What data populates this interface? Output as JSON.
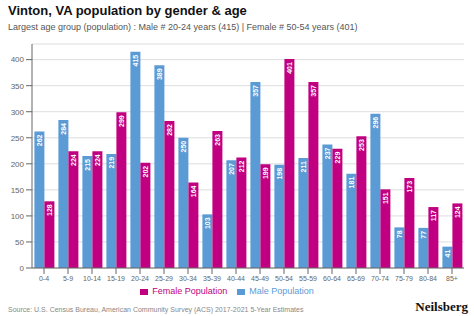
{
  "chart_data": {
    "type": "bar",
    "title": "Vinton, VA population by gender & age",
    "subtitle": "Largest age group (population) : Male # 20-24 years (415) | Female # 50-54 years (401)",
    "annotations": [
      "Source: U.S. Census Bureau, American Community Survey (ACS) 2017-2021 5-Year Estimates",
      "Neilsberg"
    ],
    "categories": [
      "0-4",
      "5-9",
      "10-14",
      "15-19",
      "20-24",
      "25-29",
      "30-34",
      "35-39",
      "40-44",
      "45-49",
      "50-54",
      "55-59",
      "60-64",
      "65-69",
      "70-74",
      "75-79",
      "80-84",
      "85+"
    ],
    "series": [
      {
        "name": "Male Population",
        "color": "#5b9bd5",
        "values": [
          262,
          284,
          215,
          219,
          415,
          389,
          250,
          103,
          207,
          357,
          198,
          211,
          237,
          181,
          296,
          78,
          77,
          41
        ]
      },
      {
        "name": "Female Population",
        "color": "#c00080",
        "values": [
          128,
          224,
          224,
          299,
          202,
          282,
          164,
          263,
          212,
          199,
          401,
          357,
          229,
          253,
          151,
          173,
          117,
          124
        ]
      }
    ],
    "ylim": [
      0,
      430
    ],
    "yticks": [
      0,
      50,
      100,
      150,
      200,
      250,
      300,
      350,
      400
    ],
    "grid": true,
    "legend": "bottom",
    "data_labels": true
  }
}
